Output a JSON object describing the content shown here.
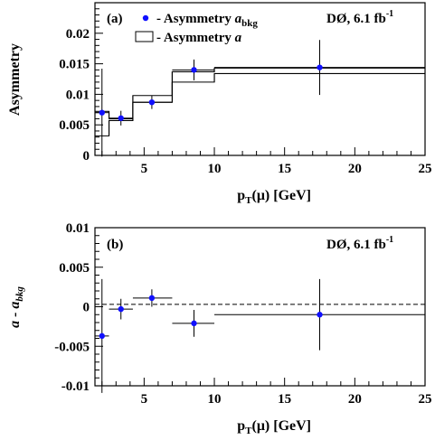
{
  "chart_data": [
    {
      "type": "scatter",
      "panel_label": "(a)",
      "experiment_label": "DØ, 6.1 fb",
      "experiment_label_sup": "-1",
      "ylabel": "Asymmetry",
      "xlabel_main": "p",
      "xlabel_sub": "T",
      "xlabel_rest": "(μ) [GeV]",
      "xlim": [
        1.5,
        25
      ],
      "ylim": [
        0,
        0.025
      ],
      "xticks": [
        "5",
        "10",
        "15",
        "20",
        "25"
      ],
      "yticks": [
        "0",
        "0.005",
        "0.01",
        "0.015",
        "0.02"
      ],
      "legend": [
        {
          "marker": "dot",
          "text": "- Asymmetry ",
          "italic": "a",
          "sub": "bkg"
        },
        {
          "marker": "box",
          "text": "- Asymmetry ",
          "italic": "a",
          "sub": ""
        }
      ],
      "series": [
        {
          "name": "Asymmetry a_bkg",
          "style": "points",
          "points": [
            {
              "x": 2.0,
              "y": 0.007,
              "xerr": [
                0.5,
                0.5
              ],
              "yerr": 0.0072
            },
            {
              "x": 3.35,
              "y": 0.0061,
              "xerr": [
                0.85,
                0.85
              ],
              "yerr": 0.0012
            },
            {
              "x": 5.55,
              "y": 0.0087,
              "xerr": [
                1.35,
                1.45
              ],
              "yerr": 0.0011
            },
            {
              "x": 8.55,
              "y": 0.014,
              "xerr": [
                1.55,
                1.45
              ],
              "yerr": 0.0017
            },
            {
              "x": 17.5,
              "y": 0.0144,
              "xerr": [
                7.5,
                7.5
              ],
              "yerr": 0.0045
            }
          ]
        },
        {
          "name": "Asymmetry a",
          "style": "band",
          "bins": [
            {
              "x0": 1.5,
              "x1": 2.5,
              "lo": 0.0032,
              "hi": 0.0072
            },
            {
              "x0": 2.5,
              "x1": 4.2,
              "lo": 0.0057,
              "hi": 0.006
            },
            {
              "x0": 4.2,
              "x1": 7.0,
              "lo": 0.0087,
              "hi": 0.0098
            },
            {
              "x0": 7.0,
              "x1": 10.0,
              "lo": 0.012,
              "hi": 0.0137
            },
            {
              "x0": 10.0,
              "x1": 25.0,
              "lo": 0.0134,
              "hi": 0.0143
            }
          ]
        }
      ]
    },
    {
      "type": "scatter",
      "panel_label": "(b)",
      "experiment_label": "DØ, 6.1 fb",
      "experiment_label_sup": "-1",
      "ylabel_main": "a - a",
      "ylabel_sub": "bkg",
      "xlabel_main": "p",
      "xlabel_sub": "T",
      "xlabel_rest": "(μ) [GeV]",
      "xlim": [
        1.5,
        25
      ],
      "ylim": [
        -0.01,
        0.01
      ],
      "xticks": [
        "5",
        "10",
        "15",
        "20",
        "25"
      ],
      "yticks": [
        "-0.01",
        "-0.005",
        "0",
        "0.005",
        "0.01"
      ],
      "reference_line": 0.0003,
      "series": [
        {
          "name": "a - a_bkg",
          "style": "points",
          "points": [
            {
              "x": 2.0,
              "y": -0.0037,
              "xerr": [
                0.5,
                0.5
              ],
              "yerr": 0.0072
            },
            {
              "x": 3.35,
              "y": -0.0003,
              "xerr": [
                0.85,
                0.85
              ],
              "yerr": 0.0013
            },
            {
              "x": 5.55,
              "y": 0.0011,
              "xerr": [
                1.35,
                1.45
              ],
              "yerr": 0.0011
            },
            {
              "x": 8.55,
              "y": -0.0021,
              "xerr": [
                1.55,
                1.45
              ],
              "yerr": 0.0017
            },
            {
              "x": 17.5,
              "y": -0.001,
              "xerr": [
                7.5,
                7.5
              ],
              "yerr": 0.0045
            }
          ]
        }
      ]
    }
  ]
}
